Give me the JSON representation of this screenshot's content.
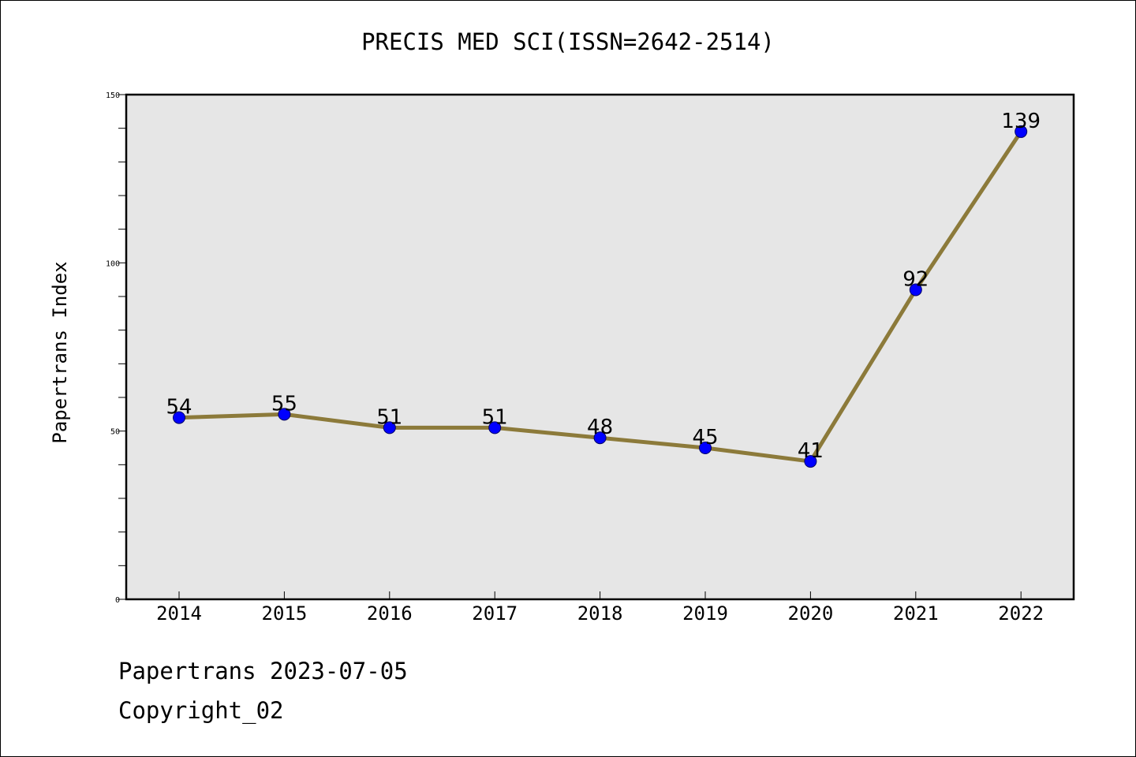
{
  "chart_data": {
    "type": "line",
    "title": "PRECIS MED SCI(ISSN=2642-2514)",
    "xlabel": "",
    "ylabel": "Papertrans Index",
    "categories": [
      "2014",
      "2015",
      "2016",
      "2017",
      "2018",
      "2019",
      "2020",
      "2021",
      "2022"
    ],
    "series": [
      {
        "values": [
          54,
          55,
          51,
          51,
          48,
          45,
          41,
          92,
          139
        ],
        "line_color": "#8c7a3a",
        "marker_color": "#0000ff"
      }
    ],
    "ylim": [
      0,
      150
    ],
    "yticks": [
      "0",
      "50",
      "100",
      "150"
    ],
    "y_minor_step": 10,
    "data_labels": [
      "54",
      "55",
      "51",
      "51",
      "48",
      "45",
      "41",
      "92",
      "139"
    ],
    "grid": false,
    "legend": "none",
    "plot_background": "#e6e6e6"
  },
  "footer": {
    "source": "Papertrans 2023-07-05",
    "copyright": "Copyright_02"
  }
}
